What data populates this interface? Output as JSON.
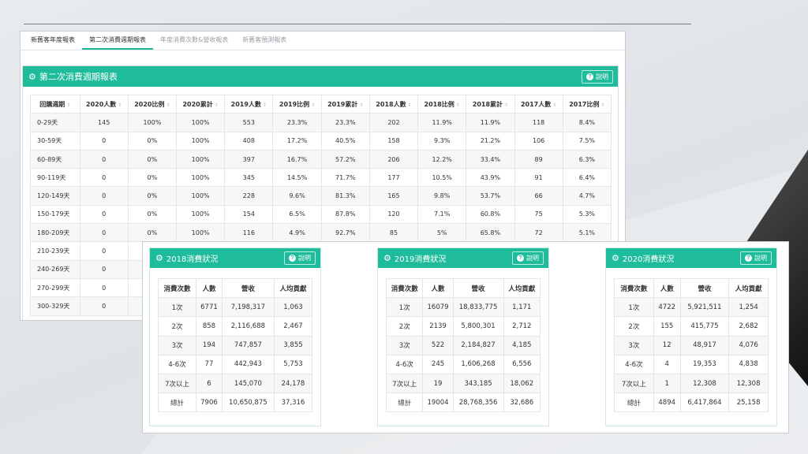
{
  "tabs": [
    {
      "label": "新舊客年度報表"
    },
    {
      "label": "第二次消費週期報表"
    },
    {
      "label": "年度消費次數&營收報表"
    },
    {
      "label": "新舊客預測報表"
    }
  ],
  "main_panel": {
    "title": "第二次消費週期報表",
    "help_label": "說明",
    "headers": [
      "回購週期",
      "2020人數",
      "2020比例",
      "2020累計",
      "2019人數",
      "2019比例",
      "2019累計",
      "2018人數",
      "2018比例",
      "2018累計",
      "2017人數",
      "2017比例"
    ],
    "rows": [
      [
        "0-29天",
        "145",
        "100%",
        "100%",
        "553",
        "23.3%",
        "23.3%",
        "202",
        "11.9%",
        "11.9%",
        "118",
        "8.4%"
      ],
      [
        "30-59天",
        "0",
        "0%",
        "100%",
        "408",
        "17.2%",
        "40.5%",
        "158",
        "9.3%",
        "21.2%",
        "106",
        "7.5%"
      ],
      [
        "60-89天",
        "0",
        "0%",
        "100%",
        "397",
        "16.7%",
        "57.2%",
        "206",
        "12.2%",
        "33.4%",
        "89",
        "6.3%"
      ],
      [
        "90-119天",
        "0",
        "0%",
        "100%",
        "345",
        "14.5%",
        "71.7%",
        "177",
        "10.5%",
        "43.9%",
        "91",
        "6.4%"
      ],
      [
        "120-149天",
        "0",
        "0%",
        "100%",
        "228",
        "9.6%",
        "81.3%",
        "165",
        "9.8%",
        "53.7%",
        "66",
        "4.7%"
      ],
      [
        "150-179天",
        "0",
        "0%",
        "100%",
        "154",
        "6.5%",
        "87.8%",
        "120",
        "7.1%",
        "60.8%",
        "75",
        "5.3%"
      ],
      [
        "180-209天",
        "0",
        "0%",
        "100%",
        "116",
        "4.9%",
        "92.7%",
        "85",
        "5%",
        "65.8%",
        "72",
        "5.1%"
      ],
      [
        "210-239天",
        "0",
        "",
        "",
        "",
        "",
        "",
        "",
        "",
        "",
        "",
        ""
      ],
      [
        "240-269天",
        "0",
        "",
        "",
        "",
        "",
        "",
        "",
        "",
        "",
        "",
        ""
      ],
      [
        "270-299天",
        "0",
        "",
        "",
        "",
        "",
        "",
        "",
        "",
        "",
        "",
        ""
      ],
      [
        "300-329天",
        "0",
        "",
        "",
        "",
        "",
        "",
        "",
        "",
        "",
        "",
        ""
      ]
    ]
  },
  "cards": [
    {
      "title": "2018消費狀況",
      "help_label": "說明",
      "headers": [
        "消費次數",
        "人數",
        "營收",
        "人均貢獻"
      ],
      "rows": [
        [
          "1次",
          "6771",
          "7,198,317",
          "1,063"
        ],
        [
          "2次",
          "858",
          "2,116,688",
          "2,467"
        ],
        [
          "3次",
          "194",
          "747,857",
          "3,855"
        ],
        [
          "4-6次",
          "77",
          "442,943",
          "5,753"
        ],
        [
          "7次以上",
          "6",
          "145,070",
          "24,178"
        ],
        [
          "總計",
          "7906",
          "10,650,875",
          "37,316"
        ]
      ]
    },
    {
      "title": "2019消費狀況",
      "help_label": "說明",
      "headers": [
        "消費次數",
        "人數",
        "營收",
        "人均貢獻"
      ],
      "rows": [
        [
          "1次",
          "16079",
          "18,833,775",
          "1,171"
        ],
        [
          "2次",
          "2139",
          "5,800,301",
          "2,712"
        ],
        [
          "3次",
          "522",
          "2,184,827",
          "4,185"
        ],
        [
          "4-6次",
          "245",
          "1,606,268",
          "6,556"
        ],
        [
          "7次以上",
          "19",
          "343,185",
          "18,062"
        ],
        [
          "總計",
          "19004",
          "28,768,356",
          "32,686"
        ]
      ]
    },
    {
      "title": "2020消費狀況",
      "help_label": "說明",
      "headers": [
        "消費次數",
        "人數",
        "營收",
        "人均貢獻"
      ],
      "rows": [
        [
          "1次",
          "4722",
          "5,921,511",
          "1,254"
        ],
        [
          "2次",
          "155",
          "415,775",
          "2,682"
        ],
        [
          "3次",
          "12",
          "48,917",
          "4,076"
        ],
        [
          "4-6次",
          "4",
          "19,353",
          "4,838"
        ],
        [
          "7次以上",
          "1",
          "12,308",
          "12,308"
        ],
        [
          "總計",
          "4894",
          "6,417,864",
          "25,158"
        ]
      ]
    }
  ],
  "icons": {
    "panel": "cogs-icon",
    "help": "question-circle-icon"
  },
  "colors": {
    "accent": "#1fbc9c",
    "tab_underline": "#17b897"
  }
}
